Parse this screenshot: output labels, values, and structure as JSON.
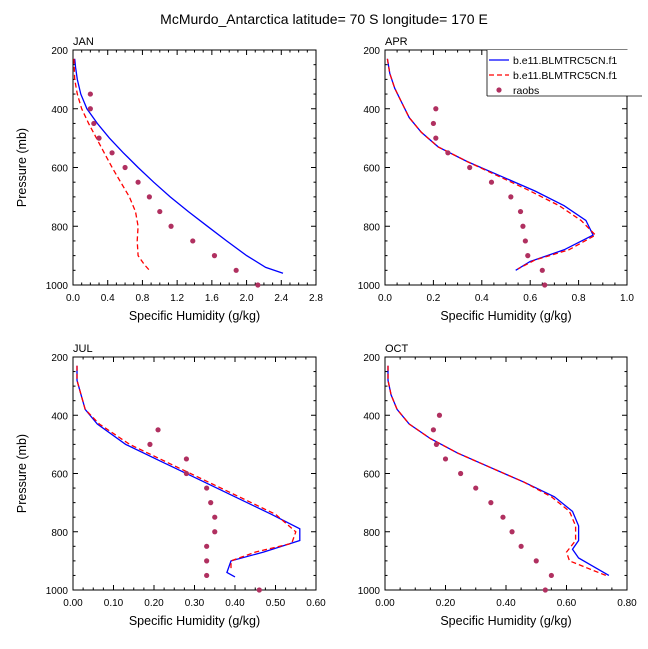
{
  "figure": {
    "title": "McMurdo_Antarctica  latitude= 70 S longitude= 170 E"
  },
  "legend": {
    "placement": "top-right of APR panel",
    "entries": [
      {
        "label": "b.e11.BLMTRC5CN.f1",
        "style": "solid",
        "color": "#0000ff"
      },
      {
        "label": "b.e11.BLMTRC5CN.f1",
        "style": "dashed",
        "color": "#ff0000"
      },
      {
        "label": "raobs",
        "style": "marker",
        "color": "#b03060"
      }
    ]
  },
  "chart_data": [
    {
      "type": "line",
      "panel_label": "JAN",
      "xlabel": "Specific Humidity (g/kg)",
      "ylabel": "Pressure (mb)",
      "xlim": [
        0,
        2.8
      ],
      "ylim": [
        1000,
        200
      ],
      "y_reversed": true,
      "xticks": [
        0.0,
        0.4,
        0.8,
        1.2,
        1.6,
        2.0,
        2.4,
        2.8
      ],
      "xtick_labels": [
        "0.0",
        "0.4",
        "0.8",
        "1.2",
        "1.6",
        "2.0",
        "2.4",
        "2.8"
      ],
      "yticks": [
        200,
        400,
        600,
        800,
        1000
      ],
      "ytick_labels": [
        "200",
        "400",
        "600",
        "800",
        "1000"
      ],
      "series": [
        {
          "color": "#0000ff",
          "style": "solid",
          "points": [
            [
              0.02,
              230
            ],
            [
              0.03,
              260
            ],
            [
              0.05,
              300
            ],
            [
              0.09,
              350
            ],
            [
              0.16,
              400
            ],
            [
              0.28,
              450
            ],
            [
              0.42,
              500
            ],
            [
              0.58,
              550
            ],
            [
              0.75,
              600
            ],
            [
              0.93,
              650
            ],
            [
              1.12,
              700
            ],
            [
              1.33,
              750
            ],
            [
              1.55,
              800
            ],
            [
              1.77,
              850
            ],
            [
              2.0,
              900
            ],
            [
              2.22,
              940
            ],
            [
              2.42,
              960
            ]
          ]
        },
        {
          "color": "#ff0000",
          "style": "dashed",
          "points": [
            [
              0.01,
              230
            ],
            [
              0.02,
              300
            ],
            [
              0.05,
              350
            ],
            [
              0.1,
              400
            ],
            [
              0.18,
              450
            ],
            [
              0.27,
              500
            ],
            [
              0.36,
              550
            ],
            [
              0.45,
              600
            ],
            [
              0.55,
              650
            ],
            [
              0.65,
              700
            ],
            [
              0.72,
              750
            ],
            [
              0.75,
              800
            ],
            [
              0.74,
              850
            ],
            [
              0.75,
              900
            ],
            [
              0.82,
              930
            ],
            [
              0.88,
              950
            ]
          ]
        },
        {
          "color": "#b03060",
          "style": "marker",
          "points": [
            [
              0.2,
              350
            ],
            [
              0.2,
              400
            ],
            [
              0.24,
              450
            ],
            [
              0.3,
              500
            ],
            [
              0.45,
              550
            ],
            [
              0.6,
              600
            ],
            [
              0.75,
              650
            ],
            [
              0.88,
              700
            ],
            [
              1.0,
              750
            ],
            [
              1.13,
              800
            ],
            [
              1.38,
              850
            ],
            [
              1.63,
              900
            ],
            [
              1.88,
              950
            ],
            [
              2.13,
              1000
            ]
          ]
        }
      ]
    },
    {
      "type": "line",
      "panel_label": "APR",
      "xlabel": "Specific Humidity (g/kg)",
      "ylabel": "",
      "xlim": [
        0,
        1.0
      ],
      "ylim": [
        1000,
        200
      ],
      "y_reversed": true,
      "xticks": [
        0.0,
        0.2,
        0.4,
        0.6,
        0.8,
        1.0
      ],
      "xtick_labels": [
        "0.0",
        "0.2",
        "0.4",
        "0.6",
        "0.8",
        "1.0"
      ],
      "yticks": [
        200,
        400,
        600,
        800,
        1000
      ],
      "ytick_labels": [
        "200",
        "400",
        "600",
        "800",
        "1000"
      ],
      "series": [
        {
          "color": "#0000ff",
          "style": "solid",
          "points": [
            [
              0.01,
              230
            ],
            [
              0.02,
              280
            ],
            [
              0.04,
              330
            ],
            [
              0.07,
              380
            ],
            [
              0.1,
              430
            ],
            [
              0.15,
              480
            ],
            [
              0.22,
              530
            ],
            [
              0.34,
              580
            ],
            [
              0.48,
              630
            ],
            [
              0.62,
              680
            ],
            [
              0.74,
              730
            ],
            [
              0.83,
              780
            ],
            [
              0.86,
              830
            ],
            [
              0.74,
              880
            ],
            [
              0.6,
              920
            ],
            [
              0.54,
              950
            ]
          ]
        },
        {
          "color": "#ff0000",
          "style": "dashed",
          "points": [
            [
              0.01,
              230
            ],
            [
              0.02,
              280
            ],
            [
              0.04,
              330
            ],
            [
              0.07,
              380
            ],
            [
              0.1,
              430
            ],
            [
              0.15,
              480
            ],
            [
              0.22,
              530
            ],
            [
              0.34,
              580
            ],
            [
              0.47,
              630
            ],
            [
              0.6,
              680
            ],
            [
              0.72,
              730
            ],
            [
              0.81,
              780
            ],
            [
              0.87,
              830
            ],
            [
              0.76,
              880
            ],
            [
              0.62,
              915
            ],
            [
              0.55,
              945
            ]
          ]
        },
        {
          "color": "#b03060",
          "style": "marker",
          "points": [
            [
              0.21,
              400
            ],
            [
              0.2,
              450
            ],
            [
              0.21,
              500
            ],
            [
              0.26,
              550
            ],
            [
              0.35,
              600
            ],
            [
              0.44,
              650
            ],
            [
              0.52,
              700
            ],
            [
              0.56,
              750
            ],
            [
              0.57,
              800
            ],
            [
              0.58,
              850
            ],
            [
              0.59,
              900
            ],
            [
              0.65,
              950
            ],
            [
              0.66,
              1000
            ]
          ]
        }
      ]
    },
    {
      "type": "line",
      "panel_label": "JUL",
      "xlabel": "Specific Humidity (g/kg)",
      "ylabel": "Pressure (mb)",
      "xlim": [
        0,
        0.6
      ],
      "ylim": [
        1000,
        200
      ],
      "y_reversed": true,
      "xticks": [
        0.0,
        0.1,
        0.2,
        0.3,
        0.4,
        0.5,
        0.6
      ],
      "xtick_labels": [
        "0.00",
        "0.10",
        "0.20",
        "0.30",
        "0.40",
        "0.50",
        "0.60"
      ],
      "yticks": [
        200,
        400,
        600,
        800,
        1000
      ],
      "ytick_labels": [
        "200",
        "400",
        "600",
        "800",
        "1000"
      ],
      "series": [
        {
          "color": "#0000ff",
          "style": "solid",
          "points": [
            [
              0.01,
              230
            ],
            [
              0.01,
              280
            ],
            [
              0.02,
              330
            ],
            [
              0.03,
              380
            ],
            [
              0.06,
              430
            ],
            [
              0.13,
              500
            ],
            [
              0.22,
              560
            ],
            [
              0.31,
              620
            ],
            [
              0.4,
              680
            ],
            [
              0.49,
              740
            ],
            [
              0.56,
              790
            ],
            [
              0.56,
              830
            ],
            [
              0.47,
              870
            ],
            [
              0.39,
              900
            ],
            [
              0.38,
              940
            ],
            [
              0.4,
              955
            ]
          ]
        },
        {
          "color": "#ff0000",
          "style": "dashed",
          "points": [
            [
              0.01,
              230
            ],
            [
              0.01,
              280
            ],
            [
              0.02,
              330
            ],
            [
              0.03,
              380
            ],
            [
              0.065,
              430
            ],
            [
              0.14,
              500
            ],
            [
              0.23,
              560
            ],
            [
              0.32,
              620
            ],
            [
              0.41,
              680
            ],
            [
              0.5,
              740
            ],
            [
              0.55,
              800
            ],
            [
              0.54,
              840
            ],
            [
              0.45,
              870
            ],
            [
              0.39,
              900
            ],
            [
              0.39,
              930
            ]
          ]
        },
        {
          "color": "#b03060",
          "style": "marker",
          "points": [
            [
              0.21,
              450
            ],
            [
              0.19,
              500
            ],
            [
              0.28,
              550
            ],
            [
              0.28,
              600
            ],
            [
              0.33,
              650
            ],
            [
              0.34,
              700
            ],
            [
              0.35,
              750
            ],
            [
              0.35,
              800
            ],
            [
              0.33,
              850
            ],
            [
              0.33,
              900
            ],
            [
              0.33,
              950
            ],
            [
              0.46,
              1000
            ]
          ]
        }
      ]
    },
    {
      "type": "line",
      "panel_label": "OCT",
      "xlabel": "Specific Humidity (g/kg)",
      "ylabel": "",
      "xlim": [
        0,
        0.8
      ],
      "ylim": [
        1000,
        200
      ],
      "y_reversed": true,
      "xticks": [
        0.0,
        0.2,
        0.4,
        0.6,
        0.8
      ],
      "xtick_labels": [
        "0.00",
        "0.20",
        "0.40",
        "0.60",
        "0.80"
      ],
      "yticks": [
        200,
        400,
        600,
        800,
        1000
      ],
      "ytick_labels": [
        "200",
        "400",
        "600",
        "800",
        "1000"
      ],
      "series": [
        {
          "color": "#0000ff",
          "style": "solid",
          "points": [
            [
              0.01,
              230
            ],
            [
              0.01,
              280
            ],
            [
              0.02,
              330
            ],
            [
              0.04,
              380
            ],
            [
              0.08,
              430
            ],
            [
              0.15,
              480
            ],
            [
              0.24,
              530
            ],
            [
              0.35,
              580
            ],
            [
              0.46,
              630
            ],
            [
              0.56,
              680
            ],
            [
              0.62,
              730
            ],
            [
              0.64,
              780
            ],
            [
              0.64,
              830
            ],
            [
              0.62,
              860
            ],
            [
              0.64,
              890
            ],
            [
              0.69,
              920
            ],
            [
              0.74,
              950
            ]
          ]
        },
        {
          "color": "#ff0000",
          "style": "dashed",
          "points": [
            [
              0.01,
              230
            ],
            [
              0.01,
              280
            ],
            [
              0.02,
              330
            ],
            [
              0.04,
              380
            ],
            [
              0.08,
              430
            ],
            [
              0.15,
              480
            ],
            [
              0.24,
              530
            ],
            [
              0.35,
              580
            ],
            [
              0.46,
              630
            ],
            [
              0.55,
              680
            ],
            [
              0.61,
              730
            ],
            [
              0.63,
              780
            ],
            [
              0.63,
              830
            ],
            [
              0.6,
              870
            ],
            [
              0.61,
              900
            ],
            [
              0.67,
              925
            ],
            [
              0.73,
              950
            ]
          ]
        },
        {
          "color": "#b03060",
          "style": "marker",
          "points": [
            [
              0.18,
              400
            ],
            [
              0.16,
              450
            ],
            [
              0.17,
              500
            ],
            [
              0.2,
              550
            ],
            [
              0.25,
              600
            ],
            [
              0.3,
              650
            ],
            [
              0.35,
              700
            ],
            [
              0.39,
              750
            ],
            [
              0.42,
              800
            ],
            [
              0.45,
              850
            ],
            [
              0.5,
              900
            ],
            [
              0.55,
              950
            ],
            [
              0.53,
              1000
            ]
          ]
        }
      ]
    }
  ]
}
